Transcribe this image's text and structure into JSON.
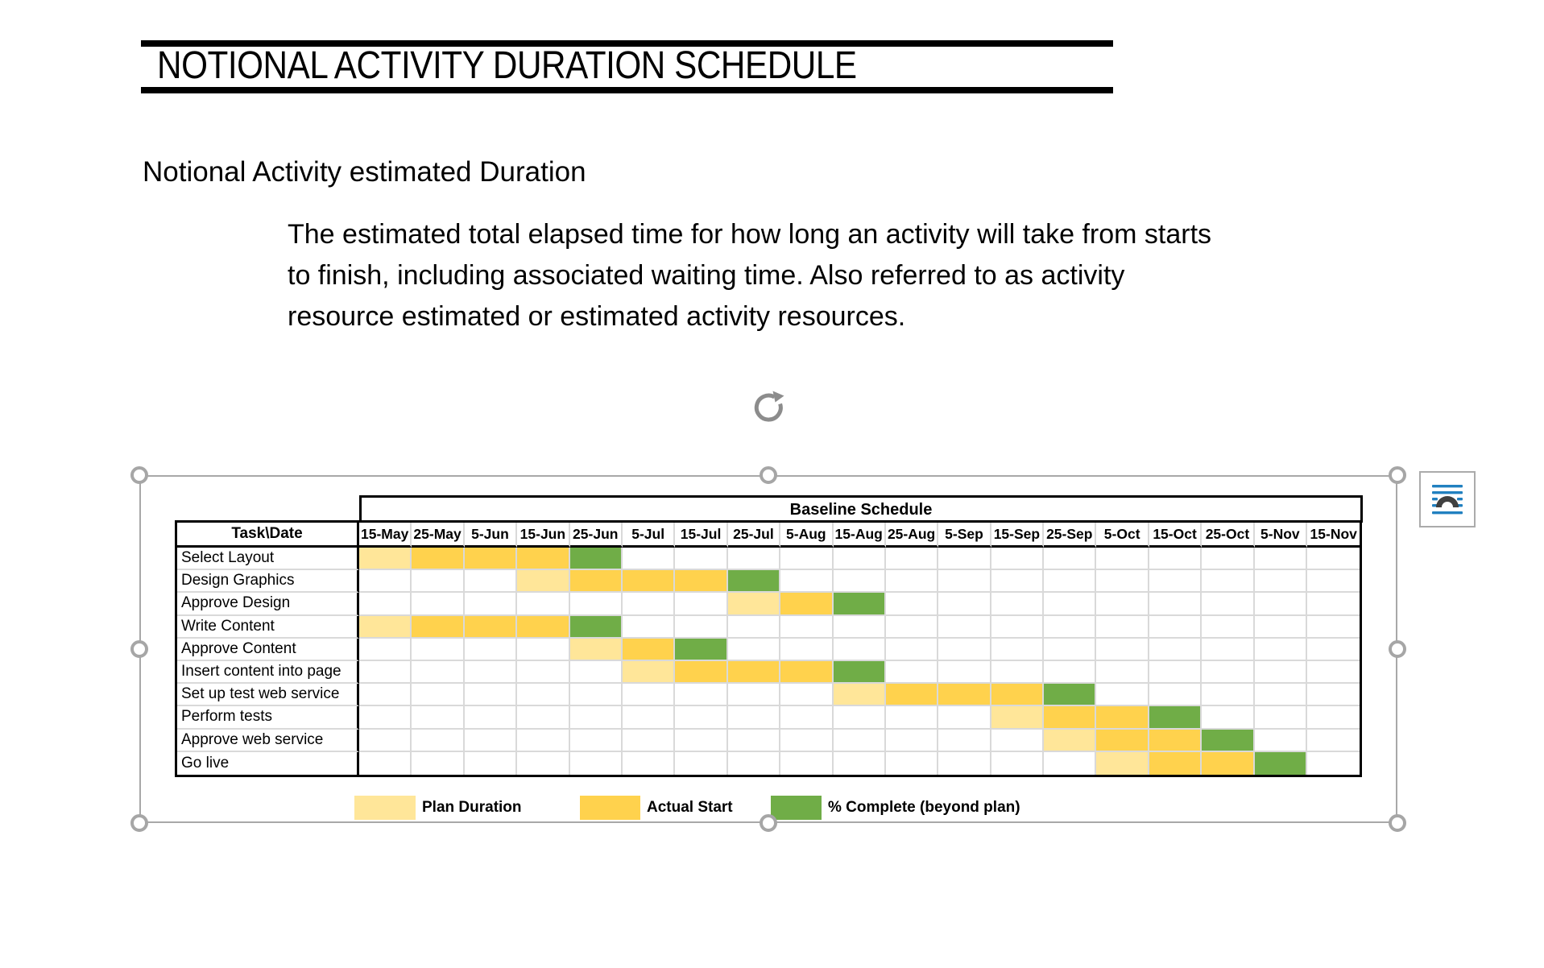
{
  "document": {
    "title": "NOTIONAL ACTIVITY DURATION SCHEDULE",
    "heading": "Notional Activity estimated Duration",
    "definition_lines": [
      "The estimated total elapsed time for how long an activity will take from starts",
      "to finish, including associated waiting time. Also referred to as activity",
      "resource estimated or estimated activity resources."
    ]
  },
  "colors": {
    "plan": "#FFE699",
    "actual": "#FFD24D",
    "complete": "#70AD47",
    "grid_line": "#D9D9D9",
    "table_border": "#000000",
    "selection": "#A6A6A6",
    "icon_blue": "#2180C0",
    "icon_dark": "#404040"
  },
  "icons": {
    "rotate": "circular-arrow",
    "layout_options": "text-wrap-arch-over-lines"
  },
  "chart_data": {
    "type": "gantt",
    "title": "Baseline Schedule",
    "corner_label": "Task\\Date",
    "columns": [
      "15-May",
      "25-May",
      "5-Jun",
      "15-Jun",
      "25-Jun",
      "5-Jul",
      "15-Jul",
      "25-Jul",
      "5-Aug",
      "15-Aug",
      "25-Aug",
      "5-Sep",
      "15-Sep",
      "25-Sep",
      "5-Oct",
      "15-Oct",
      "25-Oct",
      "5-Nov",
      "15-Nov"
    ],
    "tasks": [
      {
        "name": "Select Layout",
        "plan": [
          0
        ],
        "actual": [
          1,
          2,
          3
        ],
        "complete": [
          4
        ]
      },
      {
        "name": "Design Graphics",
        "plan": [
          3
        ],
        "actual": [
          4,
          5,
          6
        ],
        "complete": [
          7
        ]
      },
      {
        "name": "Approve Design",
        "plan": [
          7
        ],
        "actual": [
          8
        ],
        "complete": [
          9
        ]
      },
      {
        "name": "Write Content",
        "plan": [
          0
        ],
        "actual": [
          1,
          2,
          3
        ],
        "complete": [
          4
        ]
      },
      {
        "name": "Approve Content",
        "plan": [
          4
        ],
        "actual": [
          5
        ],
        "complete": [
          6
        ]
      },
      {
        "name": "Insert content into page",
        "plan": [
          5
        ],
        "actual": [
          6,
          7,
          8
        ],
        "complete": [
          9
        ]
      },
      {
        "name": "Set up test web service",
        "plan": [
          9
        ],
        "actual": [
          10,
          11,
          12
        ],
        "complete": [
          13
        ]
      },
      {
        "name": "Perform tests",
        "plan": [
          12
        ],
        "actual": [
          13,
          14
        ],
        "complete": [
          15
        ]
      },
      {
        "name": "Approve web service",
        "plan": [
          13
        ],
        "actual": [
          14,
          15
        ],
        "complete": [
          16
        ]
      },
      {
        "name": "Go live",
        "plan": [
          14
        ],
        "actual": [
          15,
          16
        ],
        "complete": [
          17
        ]
      }
    ],
    "legend": [
      {
        "label": "Plan Duration",
        "state": "plan"
      },
      {
        "label": "Actual Start",
        "state": "actual"
      },
      {
        "label": "% Complete (beyond plan)",
        "state": "complete"
      }
    ]
  }
}
